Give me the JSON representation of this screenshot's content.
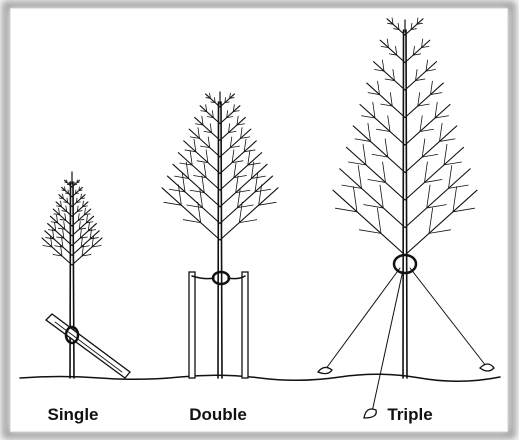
{
  "labels": [
    "Single",
    "Double",
    "Triple"
  ]
}
